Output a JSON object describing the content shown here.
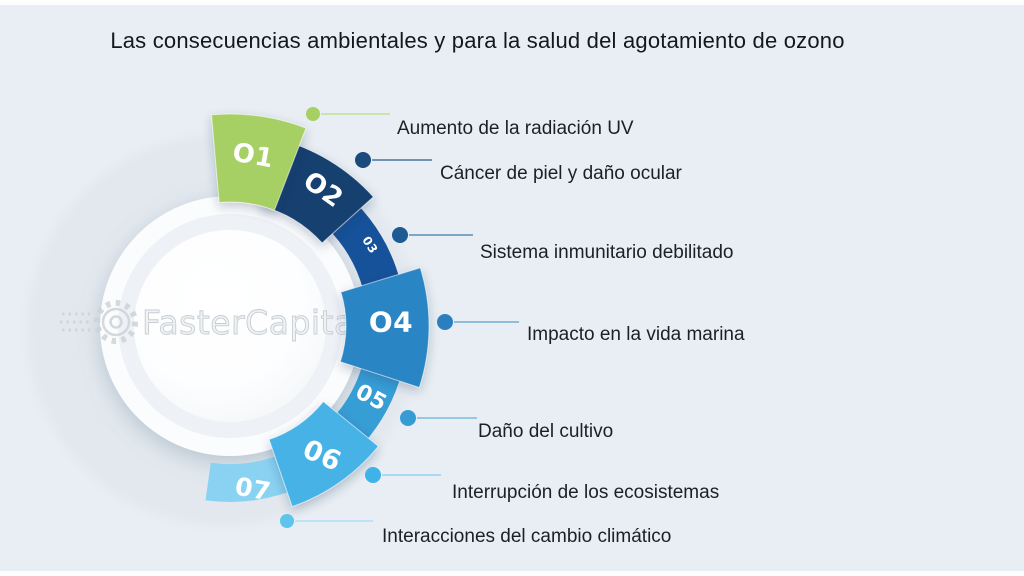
{
  "title": "Las consecuencias ambientales y para la salud del agotamiento de ozono",
  "watermark": {
    "text": "FasterCapital"
  },
  "background_color": "#e8eef3",
  "items": [
    {
      "number": "O1",
      "label": "Aumento de la radiación UV",
      "color": "#a6d064",
      "dot_color": "#a6d064",
      "line_color": "#cde3ac"
    },
    {
      "number": "O2",
      "label": "Cáncer de piel y daño ocular",
      "color": "#16406f",
      "dot_color": "#1b4a7c",
      "line_color": "#6e93b3"
    },
    {
      "number": "03",
      "label": "Sistema inmunitario debilitado",
      "color": "#16529a",
      "dot_color": "#1e5a93",
      "line_color": "#7ba6c6"
    },
    {
      "number": "O4",
      "label": "Impacto en la vida marina",
      "color": "#2a85c4",
      "dot_color": "#2b7fbf",
      "line_color": "#8fbcd9"
    },
    {
      "number": "05",
      "label": "Daño del cultivo",
      "color": "#379dd5",
      "dot_color": "#359cd4",
      "line_color": "#93c9e5"
    },
    {
      "number": "06",
      "label": "Interrupción de los ecosistemas",
      "color": "#47b2e6",
      "dot_color": "#3fb3e8",
      "line_color": "#a8dbf1"
    },
    {
      "number": "07",
      "label": "Interacciones del cambio climático",
      "color": "#8ad2f2",
      "dot_color": "#5ec4ec",
      "line_color": "#bce4f6"
    }
  ]
}
